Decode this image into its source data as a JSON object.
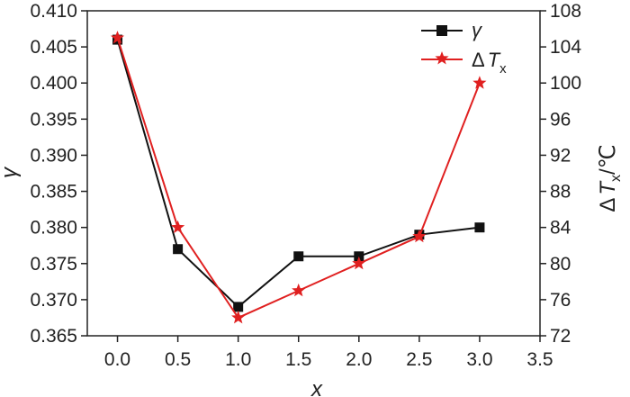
{
  "chart_data": {
    "type": "line",
    "x": [
      0.0,
      0.5,
      1.0,
      1.5,
      2.0,
      2.5,
      3.0
    ],
    "xlabel": "x",
    "xlim": [
      -0.25,
      3.5
    ],
    "xticks": [
      "0.0",
      "0.5",
      "1.0",
      "1.5",
      "2.0",
      "2.5",
      "3.0",
      "3.5"
    ],
    "ylabel_left": "γ",
    "ylim_left": [
      0.365,
      0.41
    ],
    "yticks_left": [
      "0.365",
      "0.370",
      "0.375",
      "0.380",
      "0.385",
      "0.390",
      "0.395",
      "0.400",
      "0.405",
      "0.410"
    ],
    "ylabel_right": {
      "delta": "Δ",
      "T": "T",
      "sub": "x",
      "unit": "/℃"
    },
    "ylim_right": [
      72,
      108
    ],
    "yticks_right": [
      "72",
      "76",
      "80",
      "84",
      "88",
      "92",
      "96",
      "100",
      "104",
      "108"
    ],
    "series": [
      {
        "name": "γ",
        "axis": "left",
        "marker": "square",
        "color": "#111111",
        "values": [
          0.406,
          0.377,
          0.369,
          0.376,
          0.376,
          0.379,
          0.38
        ]
      },
      {
        "name": {
          "delta": "Δ",
          "T": "T",
          "sub": "x"
        },
        "axis": "right",
        "marker": "star",
        "color": "#e02020",
        "values": [
          105,
          84,
          74,
          77,
          80,
          83,
          100
        ]
      }
    ],
    "legend_position": "top-right",
    "grid": false
  }
}
